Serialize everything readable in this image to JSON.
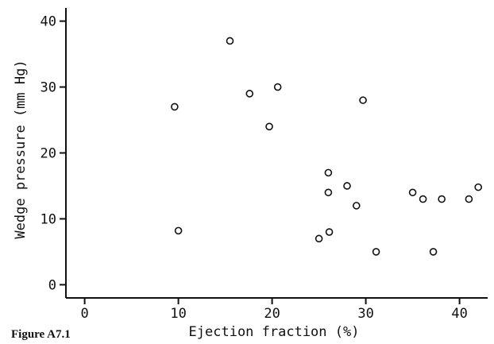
{
  "figure_caption": "Figure A7.1",
  "chart_data": {
    "type": "scatter",
    "xlabel": "Ejection fraction (%)",
    "ylabel": "Wedge pressure (mm Hg)",
    "xlim": [
      -2,
      43
    ],
    "ylim": [
      -2,
      42
    ],
    "xticks": [
      0,
      10,
      20,
      30,
      40
    ],
    "yticks": [
      0,
      10,
      20,
      30,
      40
    ],
    "grid": false,
    "marker": "open-circle",
    "points": [
      {
        "x": 9.6,
        "y": 27
      },
      {
        "x": 10,
        "y": 8.2
      },
      {
        "x": 15.5,
        "y": 37
      },
      {
        "x": 17.6,
        "y": 29
      },
      {
        "x": 19.7,
        "y": 24
      },
      {
        "x": 20.6,
        "y": 30
      },
      {
        "x": 25,
        "y": 7
      },
      {
        "x": 26,
        "y": 17
      },
      {
        "x": 26,
        "y": 14
      },
      {
        "x": 26.1,
        "y": 8
      },
      {
        "x": 28,
        "y": 15
      },
      {
        "x": 29,
        "y": 12
      },
      {
        "x": 29.7,
        "y": 28
      },
      {
        "x": 31.1,
        "y": 5
      },
      {
        "x": 35,
        "y": 14
      },
      {
        "x": 36.1,
        "y": 13
      },
      {
        "x": 37.2,
        "y": 5
      },
      {
        "x": 38.1,
        "y": 13
      },
      {
        "x": 41,
        "y": 13
      },
      {
        "x": 42,
        "y": 14.8
      }
    ]
  }
}
